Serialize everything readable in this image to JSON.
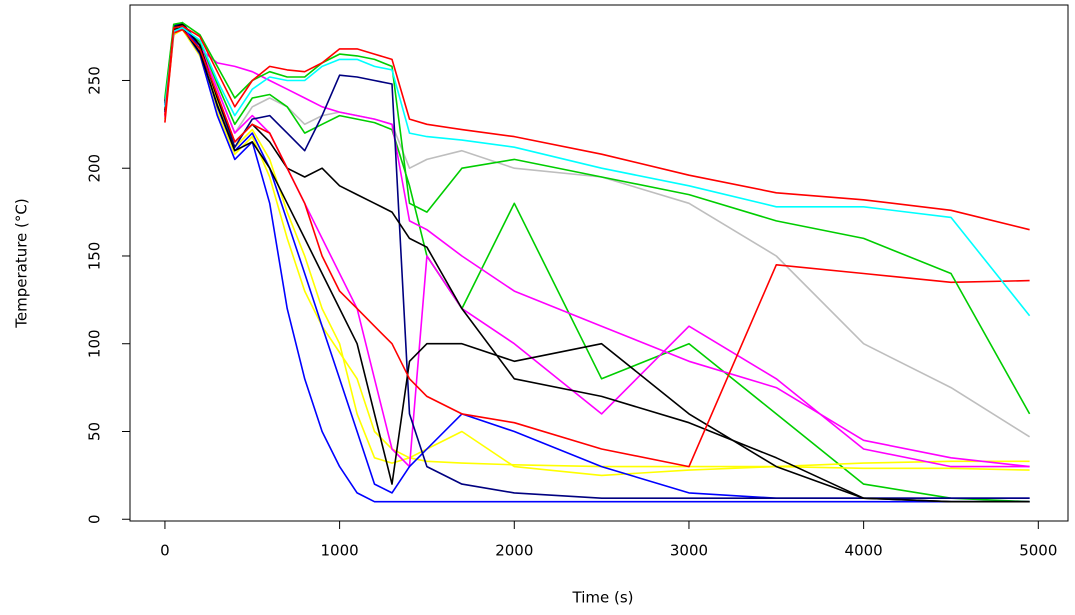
{
  "chart_data": {
    "type": "line",
    "x_label": "Time (s)",
    "y_label": "Temperature (°C)",
    "xlim": [
      -200,
      5170
    ],
    "ylim": [
      -1,
      293
    ],
    "xticks": [
      0,
      1000,
      2000,
      3000,
      4000,
      5000
    ],
    "yticks": [
      0,
      50,
      100,
      150,
      200,
      250
    ],
    "grid": false,
    "x": [
      0,
      50,
      100,
      200,
      300,
      400,
      500,
      600,
      700,
      800,
      900,
      1000,
      1100,
      1200,
      1300,
      1400,
      1500,
      1700,
      2000,
      2500,
      3000,
      3500,
      4000,
      4500,
      4950
    ],
    "series": [
      {
        "color": "#bebebe",
        "values": [
          228,
          276,
          279,
          270,
          245,
          220,
          235,
          240,
          235,
          225,
          230,
          232,
          230,
          228,
          225,
          200,
          205,
          210,
          200,
          195,
          180,
          150,
          100,
          75,
          47
        ]
      },
      {
        "color": "#00cd00",
        "values": [
          232,
          279,
          281,
          272,
          248,
          225,
          240,
          242,
          235,
          220,
          225,
          230,
          228,
          226,
          222,
          190,
          150,
          120,
          180,
          80,
          100,
          60,
          20,
          12,
          10
        ]
      },
      {
        "color": "#ffff00",
        "values": [
          228,
          276,
          279,
          264,
          232,
          208,
          218,
          195,
          160,
          130,
          110,
          95,
          80,
          50,
          40,
          35,
          33,
          32,
          31,
          30,
          30,
          30,
          29,
          29,
          28
        ]
      },
      {
        "color": "#ffff00",
        "values": [
          230,
          277,
          280,
          266,
          238,
          212,
          222,
          205,
          175,
          150,
          120,
          100,
          60,
          35,
          32,
          35,
          40,
          50,
          30,
          25,
          28,
          30,
          32,
          33,
          33
        ]
      },
      {
        "color": "#ff00ff",
        "values": [
          231,
          278,
          281,
          270,
          245,
          220,
          230,
          220,
          200,
          180,
          160,
          140,
          120,
          80,
          40,
          30,
          150,
          120,
          100,
          60,
          110,
          80,
          40,
          30,
          30
        ]
      },
      {
        "color": "#ff00ff",
        "values": [
          229,
          277,
          280,
          268,
          260,
          258,
          255,
          250,
          245,
          240,
          235,
          232,
          230,
          228,
          225,
          170,
          165,
          150,
          130,
          110,
          90,
          75,
          45,
          35,
          30
        ]
      },
      {
        "color": "#0000ff",
        "values": [
          236,
          280,
          282,
          268,
          235,
          210,
          220,
          200,
          170,
          140,
          110,
          80,
          50,
          20,
          15,
          30,
          40,
          60,
          50,
          30,
          15,
          12,
          12,
          12,
          12
        ]
      },
      {
        "color": "#0000ff",
        "values": [
          232,
          278,
          280,
          265,
          230,
          205,
          215,
          180,
          120,
          80,
          50,
          30,
          15,
          10,
          10,
          10,
          10,
          10,
          10,
          10,
          10,
          10,
          10,
          10,
          10
        ]
      },
      {
        "color": "#000080",
        "values": [
          237,
          281,
          283,
          270,
          240,
          212,
          228,
          230,
          220,
          210,
          230,
          253,
          252,
          250,
          248,
          60,
          30,
          20,
          15,
          12,
          12,
          12,
          12,
          12,
          12
        ]
      },
      {
        "color": "#000000",
        "values": [
          233,
          279,
          280,
          266,
          236,
          210,
          215,
          200,
          180,
          160,
          140,
          120,
          100,
          60,
          20,
          90,
          100,
          100,
          90,
          100,
          60,
          30,
          12,
          10,
          10
        ]
      },
      {
        "color": "#000000",
        "values": [
          238,
          280,
          282,
          270,
          240,
          215,
          225,
          215,
          200,
          195,
          200,
          190,
          185,
          180,
          175,
          160,
          155,
          120,
          80,
          70,
          55,
          35,
          12,
          10,
          10
        ]
      },
      {
        "color": "#ff0000",
        "values": [
          226,
          277,
          279,
          268,
          242,
          215,
          225,
          220,
          200,
          180,
          150,
          130,
          120,
          110,
          100,
          80,
          70,
          60,
          55,
          40,
          30,
          145,
          140,
          135,
          136
        ]
      },
      {
        "color": "#00cd00",
        "values": [
          240,
          282,
          283,
          276,
          258,
          240,
          250,
          255,
          252,
          252,
          260,
          265,
          264,
          262,
          258,
          180,
          175,
          200,
          205,
          195,
          185,
          170,
          160,
          140,
          60
        ]
      },
      {
        "color": "#00ffff",
        "values": [
          235,
          278,
          280,
          273,
          250,
          230,
          245,
          252,
          250,
          250,
          258,
          262,
          262,
          258,
          256,
          220,
          218,
          216,
          212,
          200,
          190,
          178,
          178,
          172,
          116
        ]
      },
      {
        "color": "#ff0000",
        "values": [
          230,
          280,
          281,
          275,
          255,
          235,
          250,
          258,
          256,
          255,
          260,
          268,
          268,
          265,
          262,
          228,
          225,
          222,
          218,
          208,
          196,
          186,
          182,
          176,
          165
        ]
      }
    ]
  }
}
